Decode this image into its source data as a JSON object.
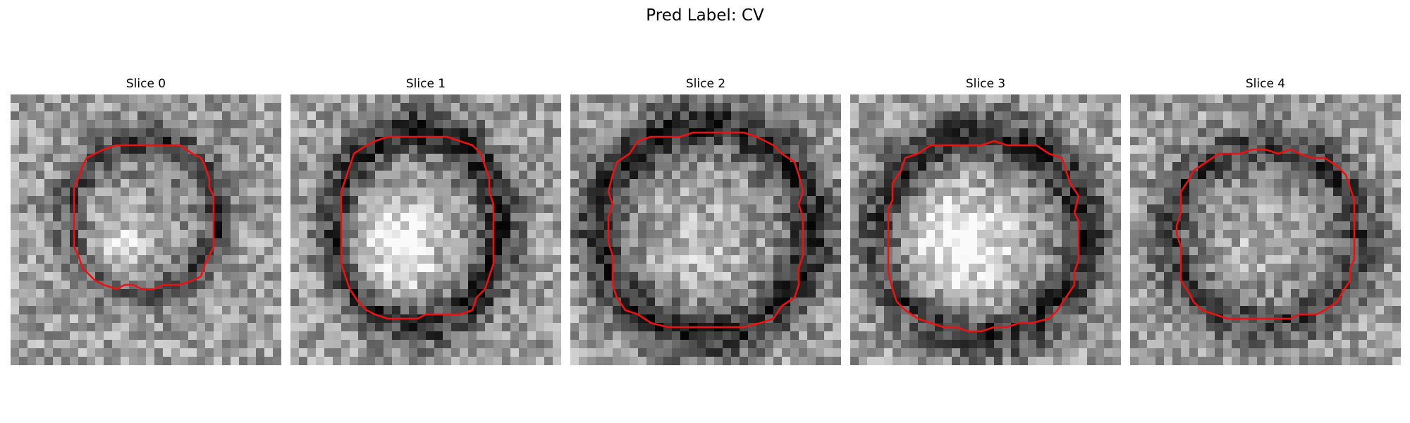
{
  "figure": {
    "title": "Pred Label: CV"
  },
  "panels": [
    {
      "title": "Slice 0",
      "seed": 11,
      "center": [
        0.49,
        0.45
      ],
      "radius": [
        0.3,
        0.31
      ],
      "dark_level": 0.3,
      "bright_center": [
        0.42,
        0.55
      ],
      "bright_amount": 0.28
    },
    {
      "title": "Slice 1",
      "seed": 23,
      "center": [
        0.47,
        0.49
      ],
      "radius": [
        0.33,
        0.39
      ],
      "dark_level": 0.42,
      "bright_center": [
        0.4,
        0.55
      ],
      "bright_amount": 0.45
    },
    {
      "title": "Slice 2",
      "seed": 37,
      "center": [
        0.5,
        0.5
      ],
      "radius": [
        0.42,
        0.42
      ],
      "dark_level": 0.42,
      "bright_center": [
        0.48,
        0.55
      ],
      "bright_amount": 0.22
    },
    {
      "title": "Slice 3",
      "seed": 41,
      "center": [
        0.49,
        0.52
      ],
      "radius": [
        0.41,
        0.4
      ],
      "dark_level": 0.4,
      "bright_center": [
        0.4,
        0.55
      ],
      "bright_amount": 0.48
    },
    {
      "title": "Slice 4",
      "seed": 53,
      "center": [
        0.5,
        0.52
      ],
      "radius": [
        0.38,
        0.36
      ],
      "dark_level": 0.32,
      "bright_center": [
        0.48,
        0.54
      ],
      "bright_amount": 0.18
    }
  ],
  "colors": {
    "contour": "#ee1111"
  }
}
